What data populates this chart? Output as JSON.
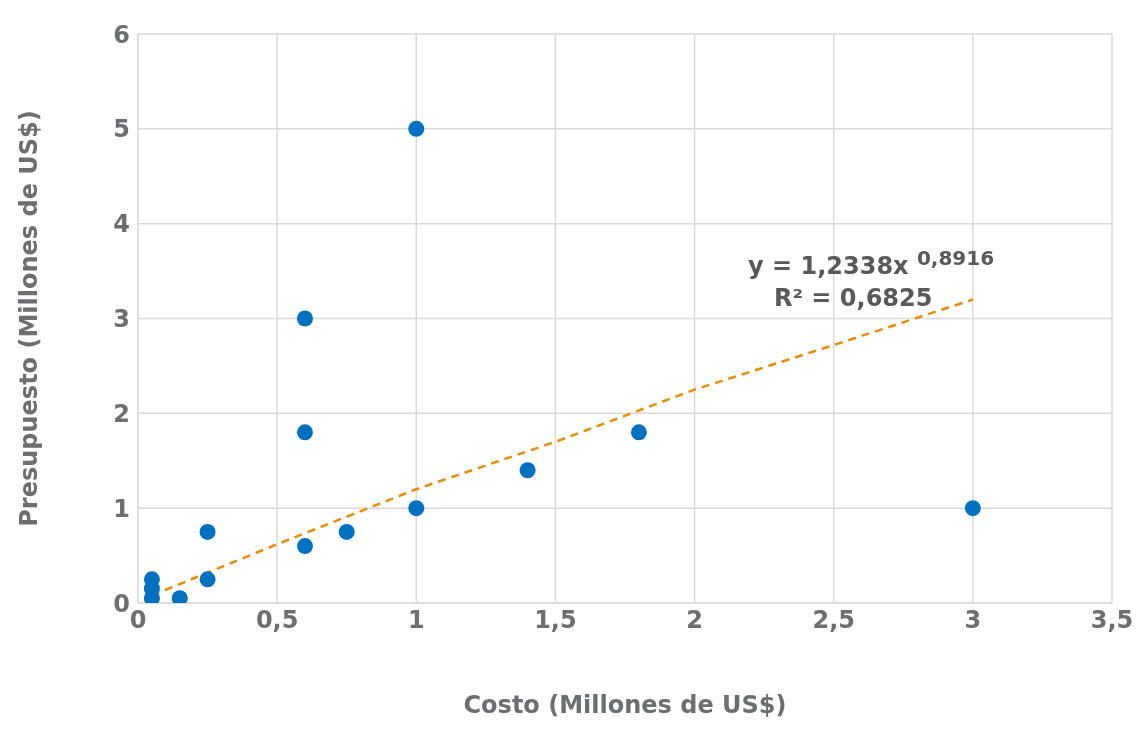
{
  "chart_data": {
    "type": "scatter",
    "xlabel": "Costo (Millones de US$)",
    "ylabel": "Presupuesto (Millones de US$)",
    "xlim": [
      0,
      3.5
    ],
    "xticks": [
      0,
      {
        "value": 0.5,
        "label": "0,5"
      },
      1,
      {
        "value": 1.5,
        "label": "1,5"
      },
      2,
      {
        "value": 2.5,
        "label": "2,5"
      },
      3,
      {
        "value": 3.5,
        "label": "3,5"
      }
    ],
    "ylim": [
      0,
      6
    ],
    "yticks": [
      0,
      1,
      2,
      3,
      4,
      5,
      6
    ],
    "grid": true,
    "series": [
      {
        "color": "#0070c0",
        "marker": "circle",
        "x": [
          0.05,
          0.05,
          0.05,
          0.15,
          0.25,
          0.25,
          0.6,
          0.6,
          0.6,
          0.75,
          1,
          1,
          1.4,
          1.8,
          3
        ],
        "values": [
          0.25,
          0.15,
          0.05,
          0.05,
          0.75,
          0.25,
          3,
          1.8,
          0.6,
          0.75,
          5,
          1,
          1.4,
          1.8,
          1
        ]
      },
      {
        "type": "line",
        "color": "#ed8b00",
        "line_style": "dashed",
        "marker": "none",
        "x": [
          0.05,
          0.5,
          1,
          1.5,
          2,
          2.5,
          3
        ],
        "values": [
          0.08,
          0.62,
          1.2,
          1.7,
          2.25,
          2.72,
          3.2
        ]
      }
    ],
    "annotations": [
      "y = 1,2338x $^{0,8916}$",
      "R² = 0,6825"
    ]
  }
}
